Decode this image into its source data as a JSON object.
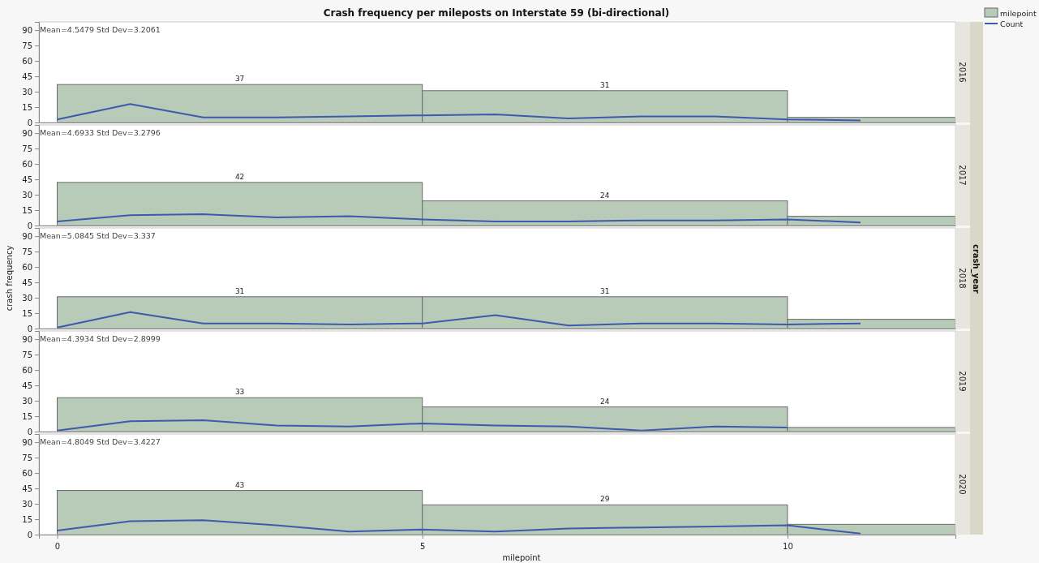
{
  "chart_data": [
    {
      "type": "histogram",
      "title": "Crash frequency per mileposts on Interstate 59 (bi-directional)",
      "subtitle": "2016",
      "annotations": [
        "Mean=4.5479  Std Dev=3.2061"
      ],
      "bins": [
        0,
        5,
        10,
        12.3
      ],
      "xlim": [
        -0.25,
        12.3
      ],
      "xticks": [
        0,
        5,
        10
      ],
      "ylim": [
        0,
        98
      ],
      "yticks": [
        0,
        15,
        30,
        45,
        60,
        75,
        90
      ],
      "tick_labels": "y",
      "legend": "top right",
      "series": [
        {
          "name": "milepoint",
          "color": "#b8cab8",
          "values": [
            37,
            31,
            5
          ],
          "value_labels": [
            "37",
            "31",
            null
          ]
        },
        {
          "name": "Count",
          "type": "line",
          "color": "#3d5aad",
          "x": [
            0,
            1,
            2,
            3,
            4,
            5,
            6,
            7,
            8,
            9,
            10,
            11
          ],
          "values": [
            3,
            18,
            5,
            5,
            6,
            7,
            8,
            4,
            6,
            6,
            3,
            2
          ]
        }
      ]
    },
    {
      "type": "histogram",
      "subtitle": "2017",
      "annotations": [
        "Mean=4.6933  Std Dev=3.2796"
      ],
      "bins": [
        0,
        5,
        10,
        12.3
      ],
      "xlim": [
        -0.25,
        12.3
      ],
      "xticks": [
        0,
        5,
        10
      ],
      "ylim": [
        0,
        98
      ],
      "yticks": [
        0,
        15,
        30,
        45,
        60,
        75,
        90
      ],
      "tick_labels": "y",
      "series": [
        {
          "color": "#b8cab8",
          "values": [
            42,
            24,
            9
          ],
          "value_labels": [
            "42",
            "24",
            null
          ]
        },
        {
          "type": "line",
          "color": "#3d5aad",
          "x": [
            0,
            1,
            2,
            3,
            4,
            5,
            6,
            7,
            8,
            9,
            10,
            11
          ],
          "values": [
            4,
            10,
            11,
            8,
            9,
            6,
            4,
            4,
            5,
            5,
            6,
            3
          ]
        }
      ]
    },
    {
      "type": "histogram",
      "subtitle": "2018",
      "ylabel": "crash frequency",
      "annotations": [
        "Mean=5.0845  Std Dev=3.337",
        "crash_year"
      ],
      "bins": [
        0,
        5,
        10,
        12.3
      ],
      "xlim": [
        -0.25,
        12.3
      ],
      "xticks": [
        0,
        5,
        10
      ],
      "ylim": [
        0,
        98
      ],
      "yticks": [
        0,
        15,
        30,
        45,
        60,
        75,
        90
      ],
      "tick_labels": "y",
      "series": [
        {
          "color": "#b8cab8",
          "values": [
            31,
            31,
            9
          ],
          "value_labels": [
            "31",
            "31",
            null
          ]
        },
        {
          "type": "line",
          "color": "#3d5aad",
          "x": [
            0,
            1,
            2,
            3,
            4,
            5,
            6,
            7,
            8,
            9,
            10,
            11
          ],
          "values": [
            1,
            16,
            5,
            5,
            4,
            5,
            13,
            3,
            5,
            5,
            4,
            5
          ]
        }
      ]
    },
    {
      "type": "histogram",
      "subtitle": "2019",
      "annotations": [
        "Mean=4.3934  Std Dev=2.8999"
      ],
      "bins": [
        0,
        5,
        10,
        12.3
      ],
      "xlim": [
        -0.25,
        12.3
      ],
      "xticks": [
        0,
        5,
        10
      ],
      "ylim": [
        0,
        98
      ],
      "yticks": [
        0,
        15,
        30,
        45,
        60,
        75,
        90
      ],
      "tick_labels": "y",
      "series": [
        {
          "color": "#b8cab8",
          "values": [
            33,
            24,
            4
          ],
          "value_labels": [
            "33",
            "24",
            null
          ]
        },
        {
          "type": "line",
          "color": "#3d5aad",
          "x": [
            0,
            1,
            2,
            3,
            4,
            5,
            6,
            7,
            8,
            9,
            10
          ],
          "values": [
            1,
            10,
            11,
            6,
            5,
            8,
            6,
            5,
            1,
            5,
            4
          ]
        }
      ]
    },
    {
      "type": "histogram",
      "subtitle": "2020",
      "xlabel": "milepoint",
      "annotations": [
        "Mean=4.8049  Std Dev=3.4227"
      ],
      "bins": [
        0,
        5,
        10,
        12.3
      ],
      "xlim": [
        -0.25,
        12.3
      ],
      "xticks": [
        0,
        5,
        10
      ],
      "ylim": [
        0,
        98
      ],
      "yticks": [
        0,
        15,
        30,
        45,
        60,
        75,
        90
      ],
      "series": [
        {
          "color": "#b8cab8",
          "values": [
            43,
            29,
            10
          ],
          "value_labels": [
            "43",
            "29",
            null
          ]
        },
        {
          "type": "line",
          "color": "#3d5aad",
          "x": [
            0,
            1,
            2,
            3,
            4,
            5,
            6,
            7,
            8,
            9,
            10,
            11
          ],
          "values": [
            4,
            13,
            14,
            9,
            3,
            5,
            3,
            6,
            7,
            8,
            9,
            1
          ]
        }
      ]
    }
  ]
}
